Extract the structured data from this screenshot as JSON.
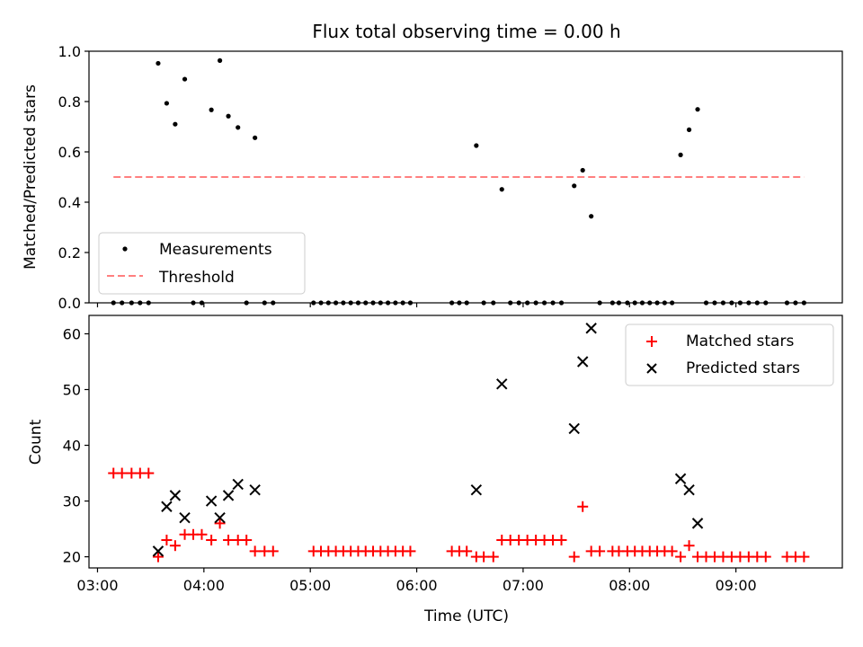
{
  "chart_data": [
    {
      "type": "scatter",
      "title": "Flux total observing time = 0.00 h",
      "xlabel": "",
      "ylabel": "Matched/Predicted stars",
      "xlim": [
        2.92,
        10.0
      ],
      "ylim": [
        0.0,
        1.0
      ],
      "yticks": [
        0.0,
        0.2,
        0.4,
        0.6,
        0.8,
        1.0
      ],
      "yticklabels": [
        "0.0",
        "0.2",
        "0.4",
        "0.6",
        "0.8",
        "1.0"
      ],
      "xticks": [
        3,
        4,
        5,
        6,
        7,
        8,
        9
      ],
      "legend": {
        "position": "lower-left",
        "entries": [
          "Measurements",
          "Threshold"
        ]
      },
      "series": [
        {
          "name": "Measurements",
          "style": "dot",
          "color": "#000000",
          "points": [
            [
              3.15,
              0.0
            ],
            [
              3.23,
              0.0
            ],
            [
              3.32,
              0.0
            ],
            [
              3.4,
              0.0
            ],
            [
              3.48,
              0.0
            ],
            [
              3.57,
              0.952
            ],
            [
              3.65,
              0.793
            ],
            [
              3.73,
              0.71
            ],
            [
              3.82,
              0.889
            ],
            [
              3.9,
              0.0
            ],
            [
              3.98,
              0.0
            ],
            [
              4.07,
              0.767
            ],
            [
              4.15,
              0.963
            ],
            [
              4.23,
              0.742
            ],
            [
              4.32,
              0.697
            ],
            [
              4.4,
              0.0
            ],
            [
              4.48,
              0.656
            ],
            [
              4.57,
              0.0
            ],
            [
              4.65,
              0.0
            ],
            [
              5.03,
              0.0
            ],
            [
              5.1,
              0.0
            ],
            [
              5.17,
              0.0
            ],
            [
              5.24,
              0.0
            ],
            [
              5.31,
              0.0
            ],
            [
              5.38,
              0.0
            ],
            [
              5.45,
              0.0
            ],
            [
              5.52,
              0.0
            ],
            [
              5.59,
              0.0
            ],
            [
              5.66,
              0.0
            ],
            [
              5.73,
              0.0
            ],
            [
              5.8,
              0.0
            ],
            [
              5.87,
              0.0
            ],
            [
              5.94,
              0.0
            ],
            [
              6.33,
              0.0
            ],
            [
              6.4,
              0.0
            ],
            [
              6.47,
              0.0
            ],
            [
              6.56,
              0.625
            ],
            [
              6.63,
              0.0
            ],
            [
              6.72,
              0.0
            ],
            [
              6.8,
              0.451
            ],
            [
              6.88,
              0.0
            ],
            [
              6.96,
              0.0
            ],
            [
              7.04,
              0.0
            ],
            [
              7.12,
              0.0
            ],
            [
              7.2,
              0.0
            ],
            [
              7.28,
              0.0
            ],
            [
              7.36,
              0.0
            ],
            [
              7.48,
              0.465
            ],
            [
              7.56,
              0.527
            ],
            [
              7.64,
              0.344
            ],
            [
              7.72,
              0.0
            ],
            [
              7.84,
              0.0
            ],
            [
              7.9,
              0.0
            ],
            [
              7.98,
              0.0
            ],
            [
              8.05,
              0.0
            ],
            [
              8.12,
              0.0
            ],
            [
              8.19,
              0.0
            ],
            [
              8.26,
              0.0
            ],
            [
              8.33,
              0.0
            ],
            [
              8.4,
              0.0
            ],
            [
              8.48,
              0.588
            ],
            [
              8.56,
              0.688
            ],
            [
              8.64,
              0.769
            ],
            [
              8.72,
              0.0
            ],
            [
              8.8,
              0.0
            ],
            [
              8.88,
              0.0
            ],
            [
              8.96,
              0.0
            ],
            [
              9.04,
              0.0
            ],
            [
              9.12,
              0.0
            ],
            [
              9.2,
              0.0
            ],
            [
              9.28,
              0.0
            ],
            [
              9.48,
              0.0
            ],
            [
              9.56,
              0.0
            ],
            [
              9.64,
              0.0
            ]
          ]
        },
        {
          "name": "Threshold",
          "style": "dashed-line",
          "color": "#ff7f7f",
          "points": [
            [
              3.15,
              0.5
            ],
            [
              9.64,
              0.5
            ]
          ]
        }
      ]
    },
    {
      "type": "scatter",
      "title": "",
      "xlabel": "Time (UTC)",
      "ylabel": "Count",
      "xlim": [
        2.92,
        10.0
      ],
      "ylim": [
        18,
        63.3
      ],
      "yticks": [
        20,
        30,
        40,
        50,
        60
      ],
      "yticklabels": [
        "20",
        "30",
        "40",
        "50",
        "60"
      ],
      "xticks": [
        3,
        4,
        5,
        6,
        7,
        8,
        9
      ],
      "xticklabels": [
        "03:00",
        "04:00",
        "05:00",
        "06:00",
        "07:00",
        "08:00",
        "09:00"
      ],
      "legend": {
        "position": "top-right",
        "entries": [
          "Matched stars",
          "Predicted stars"
        ]
      },
      "series": [
        {
          "name": "Matched stars",
          "style": "plus",
          "color": "#ff0000",
          "points": [
            [
              3.15,
              35
            ],
            [
              3.23,
              35
            ],
            [
              3.32,
              35
            ],
            [
              3.4,
              35
            ],
            [
              3.48,
              35
            ],
            [
              3.57,
              20
            ],
            [
              3.65,
              23
            ],
            [
              3.73,
              22
            ],
            [
              3.82,
              24
            ],
            [
              3.9,
              24
            ],
            [
              3.98,
              24
            ],
            [
              4.07,
              23
            ],
            [
              4.15,
              26
            ],
            [
              4.23,
              23
            ],
            [
              4.32,
              23
            ],
            [
              4.4,
              23
            ],
            [
              4.48,
              21
            ],
            [
              4.57,
              21
            ],
            [
              4.65,
              21
            ],
            [
              5.03,
              21
            ],
            [
              5.1,
              21
            ],
            [
              5.17,
              21
            ],
            [
              5.24,
              21
            ],
            [
              5.31,
              21
            ],
            [
              5.38,
              21
            ],
            [
              5.45,
              21
            ],
            [
              5.52,
              21
            ],
            [
              5.59,
              21
            ],
            [
              5.66,
              21
            ],
            [
              5.73,
              21
            ],
            [
              5.8,
              21
            ],
            [
              5.87,
              21
            ],
            [
              5.94,
              21
            ],
            [
              6.33,
              21
            ],
            [
              6.4,
              21
            ],
            [
              6.47,
              21
            ],
            [
              6.56,
              20
            ],
            [
              6.63,
              20
            ],
            [
              6.72,
              20
            ],
            [
              6.8,
              23
            ],
            [
              6.88,
              23
            ],
            [
              6.96,
              23
            ],
            [
              7.04,
              23
            ],
            [
              7.12,
              23
            ],
            [
              7.2,
              23
            ],
            [
              7.28,
              23
            ],
            [
              7.36,
              23
            ],
            [
              7.48,
              20
            ],
            [
              7.56,
              29
            ],
            [
              7.64,
              21
            ],
            [
              7.72,
              21
            ],
            [
              7.84,
              21
            ],
            [
              7.9,
              21
            ],
            [
              7.98,
              21
            ],
            [
              8.05,
              21
            ],
            [
              8.12,
              21
            ],
            [
              8.19,
              21
            ],
            [
              8.26,
              21
            ],
            [
              8.33,
              21
            ],
            [
              8.4,
              21
            ],
            [
              8.48,
              20
            ],
            [
              8.56,
              22
            ],
            [
              8.64,
              20
            ],
            [
              8.72,
              20
            ],
            [
              8.8,
              20
            ],
            [
              8.88,
              20
            ],
            [
              8.96,
              20
            ],
            [
              9.04,
              20
            ],
            [
              9.12,
              20
            ],
            [
              9.2,
              20
            ],
            [
              9.28,
              20
            ],
            [
              9.48,
              20
            ],
            [
              9.56,
              20
            ],
            [
              9.64,
              20
            ]
          ]
        },
        {
          "name": "Predicted stars",
          "style": "x",
          "color": "#000000",
          "points": [
            [
              3.57,
              21
            ],
            [
              3.65,
              29
            ],
            [
              3.73,
              31
            ],
            [
              3.82,
              27
            ],
            [
              4.07,
              30
            ],
            [
              4.15,
              27
            ],
            [
              4.23,
              31
            ],
            [
              4.32,
              33
            ],
            [
              4.48,
              32
            ],
            [
              6.56,
              32
            ],
            [
              6.8,
              51
            ],
            [
              7.48,
              43
            ],
            [
              7.56,
              55
            ],
            [
              7.64,
              61
            ],
            [
              8.48,
              34
            ],
            [
              8.56,
              32
            ],
            [
              8.64,
              26
            ]
          ]
        }
      ]
    }
  ]
}
